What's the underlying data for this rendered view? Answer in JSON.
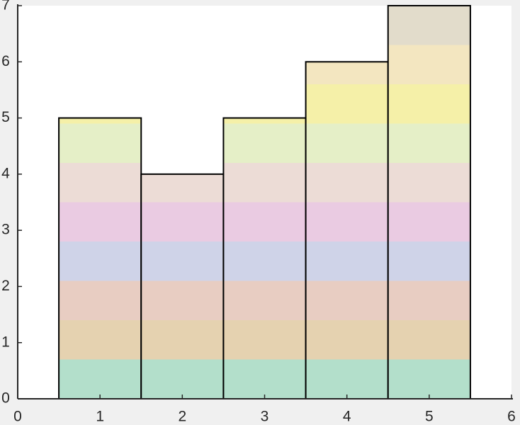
{
  "chart_data": {
    "type": "bar",
    "x": [
      1,
      2,
      3,
      4,
      5
    ],
    "values": [
      5,
      4,
      5,
      6,
      7
    ],
    "xlim": [
      0,
      6
    ],
    "xticks": [
      0,
      1,
      2,
      3,
      4,
      5,
      6
    ],
    "ylim": [
      0,
      7
    ],
    "yticks": [
      0,
      1,
      2,
      3,
      4,
      5,
      6,
      7
    ],
    "bar_width": 1,
    "edge_color": "#000000",
    "band_colors": [
      "#b3dfcb",
      "#e5d2b0",
      "#e8cdc2",
      "#cfd3e8",
      "#eacbe2",
      "#ecdcd6",
      "#e5efc7",
      "#f5f0a8",
      "#f3e6c0",
      "#e2dccb"
    ],
    "grid": false
  }
}
